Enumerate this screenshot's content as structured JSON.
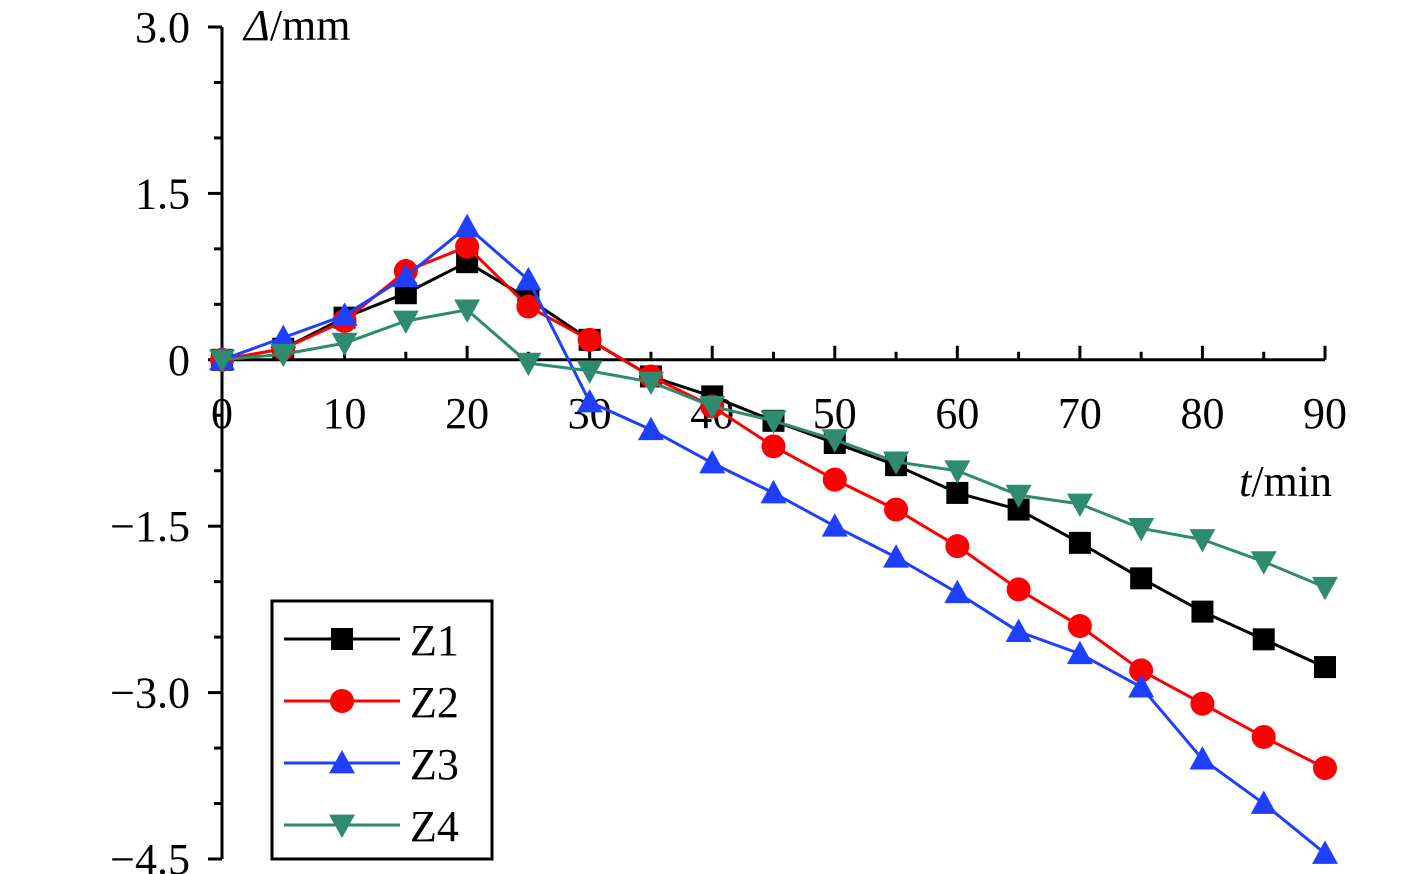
{
  "chart_data": {
    "type": "line",
    "title": "",
    "x_axis": {
      "label_var": "t",
      "label_unit": "/min",
      "range": [
        0,
        90
      ],
      "ticks": [
        0,
        10,
        20,
        30,
        40,
        50,
        60,
        70,
        80,
        90
      ],
      "tick_labels": [
        "0",
        "10",
        "20",
        "30",
        "40",
        "50",
        "60",
        "70",
        "80",
        "90"
      ]
    },
    "y_axis": {
      "label_var": "Δ",
      "label_unit": "/mm",
      "range": [
        -4.5,
        3.0
      ],
      "ticks": [
        3.0,
        1.5,
        0,
        -1.5,
        -3.0,
        -4.5
      ],
      "tick_labels": [
        "3.0",
        "1.5",
        "0",
        "−1.5",
        "−3.0",
        "−4.5"
      ]
    },
    "grid": false,
    "legend_position": "bottom-left",
    "x": [
      0,
      5,
      10,
      15,
      20,
      25,
      30,
      35,
      40,
      45,
      50,
      55,
      60,
      65,
      70,
      75,
      80,
      85,
      90
    ],
    "series": [
      {
        "name": "Z1",
        "color": "#000000",
        "marker": "square",
        "values": [
          0,
          0.1,
          0.38,
          0.6,
          0.88,
          0.55,
          0.18,
          -0.15,
          -0.33,
          -0.55,
          -0.75,
          -0.95,
          -1.2,
          -1.35,
          -1.65,
          -1.97,
          -2.27,
          -2.52,
          -2.77
        ]
      },
      {
        "name": "Z2",
        "color": "#ff0000",
        "marker": "circle",
        "values": [
          0,
          0.1,
          0.35,
          0.8,
          1.02,
          0.48,
          0.18,
          -0.15,
          -0.42,
          -0.78,
          -1.08,
          -1.35,
          -1.68,
          -2.07,
          -2.4,
          -2.8,
          -3.1,
          -3.4,
          -3.68
        ]
      },
      {
        "name": "Z3",
        "color": "#1f3fff",
        "marker": "triangle-up",
        "values": [
          0,
          0.2,
          0.4,
          0.75,
          1.2,
          0.72,
          -0.38,
          -0.63,
          -0.93,
          -1.2,
          -1.5,
          -1.78,
          -2.1,
          -2.45,
          -2.65,
          -2.95,
          -3.6,
          -4.0,
          -4.45
        ]
      },
      {
        "name": "Z4",
        "color": "#2e8b6f",
        "marker": "triangle-down",
        "values": [
          0,
          0.05,
          0.15,
          0.35,
          0.45,
          -0.03,
          -0.1,
          -0.2,
          -0.42,
          -0.55,
          -0.72,
          -0.92,
          -1.0,
          -1.22,
          -1.3,
          -1.52,
          -1.62,
          -1.82,
          -2.05
        ]
      }
    ]
  }
}
